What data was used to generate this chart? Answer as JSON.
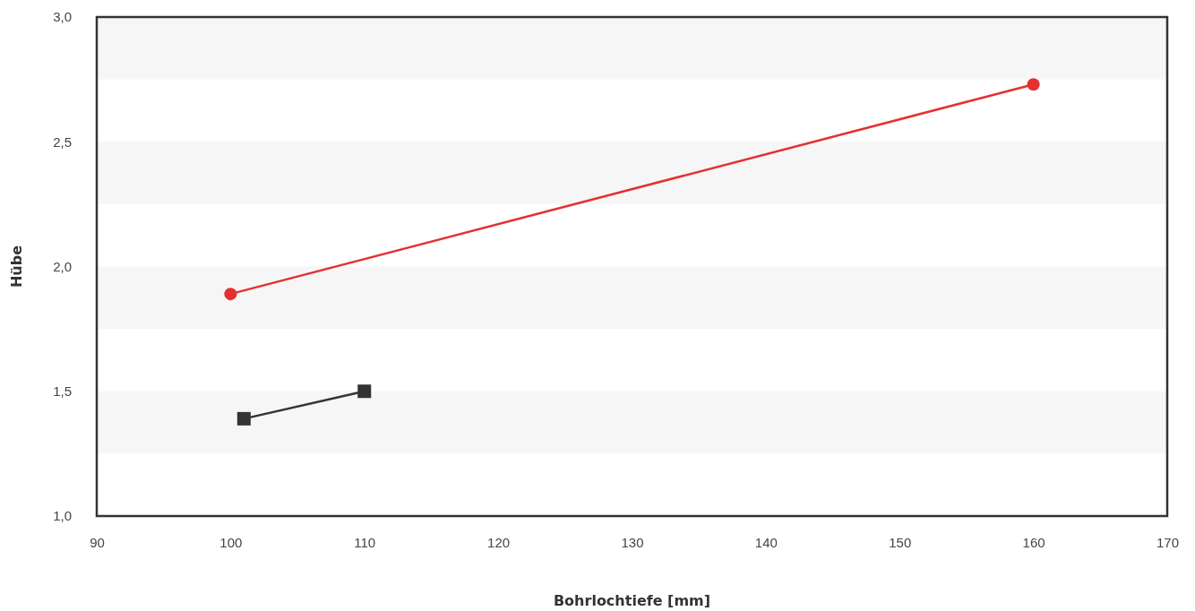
{
  "chart_data": {
    "type": "line",
    "xlabel": "Bohrlochtiefe [mm]",
    "ylabel": "Hübe",
    "xlim": [
      90,
      170
    ],
    "xticks": [
      90,
      100,
      110,
      120,
      130,
      140,
      150,
      160,
      170
    ],
    "ylim": [
      1,
      3
    ],
    "yticks": [
      {
        "value": 1,
        "label": "1,0"
      },
      {
        "value": 1.5,
        "label": "1,5"
      },
      {
        "value": 2,
        "label": "2,0"
      },
      {
        "value": 2.5,
        "label": "2,5"
      },
      {
        "value": 3,
        "label": "3,0"
      }
    ],
    "bands": [
      {
        "axis": "y",
        "from": 1.25,
        "to": 1.5,
        "color": "#f6f6f6"
      },
      {
        "axis": "y",
        "from": 1.75,
        "to": 2.0,
        "color": "#f6f6f6"
      },
      {
        "axis": "y",
        "from": 2.25,
        "to": 2.5,
        "color": "#f6f6f6"
      },
      {
        "axis": "y",
        "from": 2.75,
        "to": 3.0,
        "color": "#f6f6f6"
      }
    ],
    "series": [
      {
        "color": "#e53030",
        "marker": "circle",
        "x": [
          100,
          160
        ],
        "values": [
          1.89,
          2.73
        ]
      },
      {
        "color": "#333333",
        "marker": "square",
        "x": [
          101,
          110
        ],
        "values": [
          1.39,
          1.5
        ]
      }
    ]
  }
}
